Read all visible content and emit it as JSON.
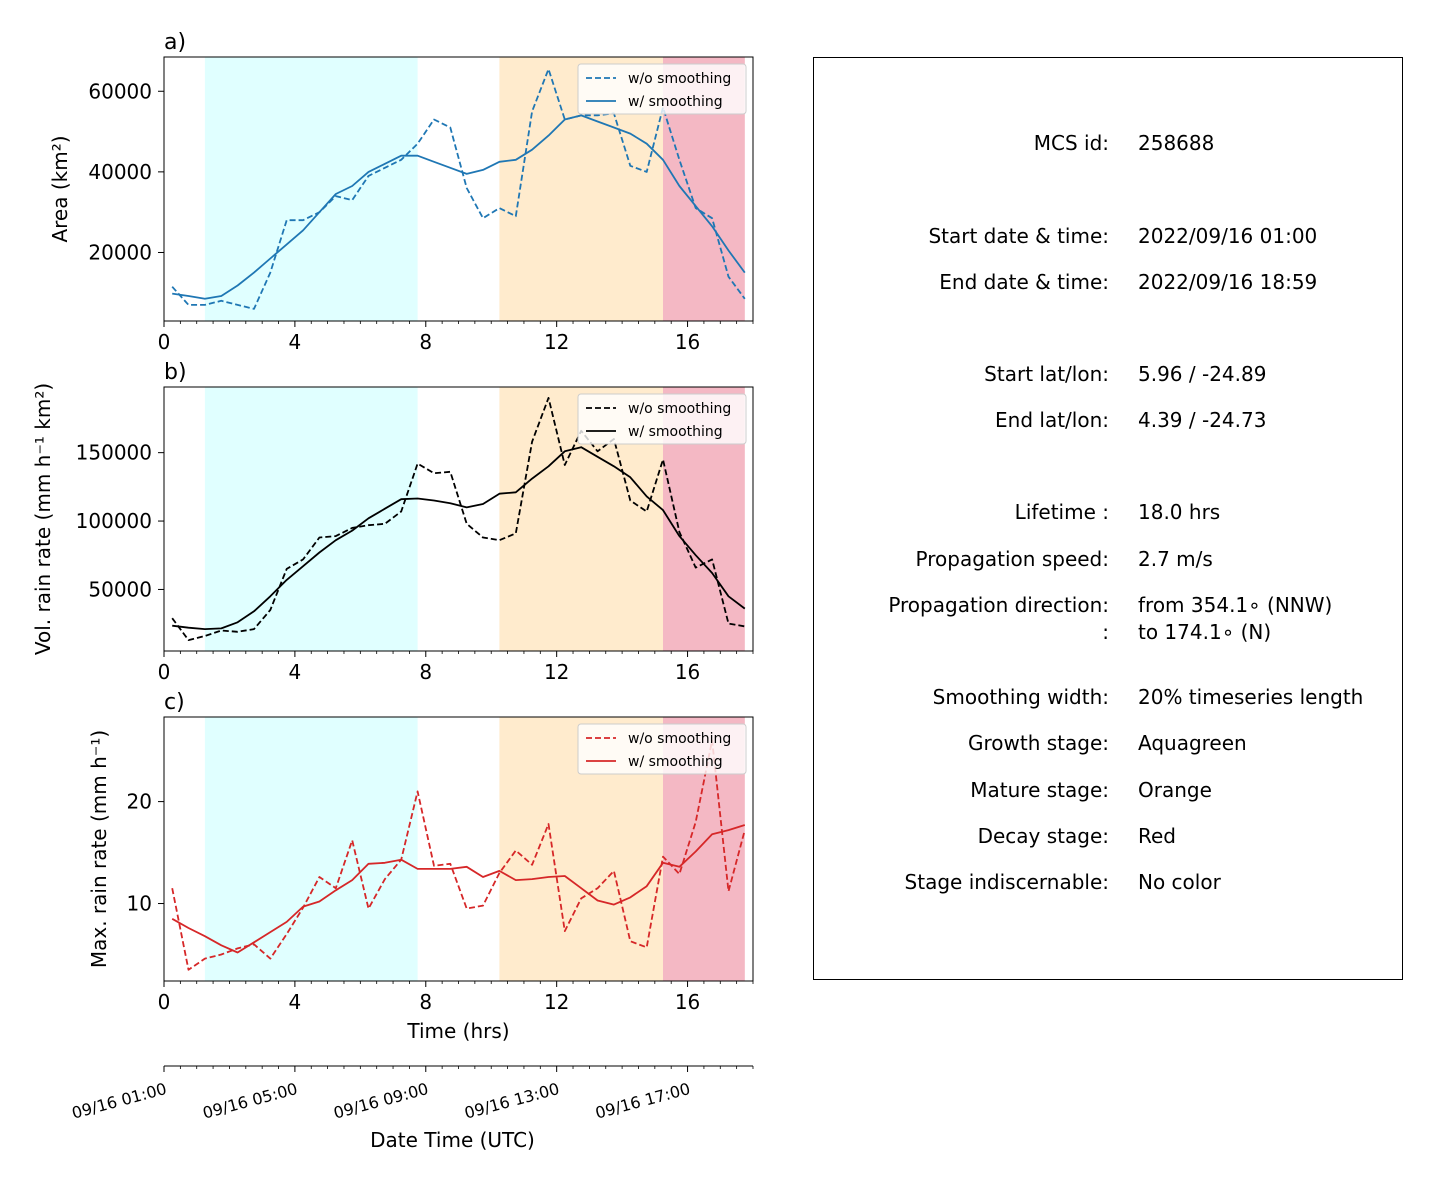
{
  "chart_data": [
    {
      "panel_label": "a)",
      "type": "line",
      "ylabel": "Area  (km²)",
      "xlabel": "",
      "xlim": [
        0,
        18
      ],
      "ylim": [
        3000,
        68500
      ],
      "yticks": [
        20000,
        40000,
        60000
      ],
      "xticks": [
        0,
        4,
        8,
        12,
        16
      ],
      "color": "#1f77b4",
      "legend_position": "upper right",
      "stages": [
        {
          "start": 1.25,
          "end": 7.75,
          "color": "#e0ffff"
        },
        {
          "start": 10.25,
          "end": 15.25,
          "color": "#ffebcd"
        },
        {
          "start": 15.25,
          "end": 17.75,
          "color": "#f4b8c4"
        }
      ],
      "series": [
        {
          "name": "w/o smoothing",
          "style": "dashed",
          "x": [
            0.25,
            0.75,
            1.25,
            1.75,
            2.25,
            2.75,
            3.25,
            3.75,
            4.25,
            4.75,
            5.25,
            5.75,
            6.25,
            6.75,
            7.25,
            7.75,
            8.25,
            8.75,
            9.25,
            9.75,
            10.25,
            10.75,
            11.25,
            11.75,
            12.25,
            12.75,
            13.25,
            13.75,
            14.25,
            14.75,
            15.25,
            15.75,
            16.25,
            16.75,
            17.25,
            17.75
          ],
          "y": [
            11500,
            7000,
            7000,
            8000,
            7000,
            6000,
            15000,
            28000,
            28000,
            30000,
            34000,
            33000,
            39000,
            41000,
            43000,
            47000,
            53000,
            51000,
            36000,
            28500,
            31000,
            29000,
            55000,
            65500,
            53000,
            54000,
            54000,
            54500,
            41500,
            40000,
            56000,
            43000,
            31000,
            28500,
            14000,
            8500
          ]
        },
        {
          "name": "w/ smoothing",
          "style": "solid",
          "x": [
            0.25,
            0.75,
            1.25,
            1.75,
            2.25,
            2.75,
            3.25,
            3.75,
            4.25,
            4.75,
            5.25,
            5.75,
            6.25,
            6.75,
            7.25,
            7.75,
            8.25,
            8.75,
            9.25,
            9.75,
            10.25,
            10.75,
            11.25,
            11.75,
            12.25,
            12.75,
            13.25,
            13.75,
            14.25,
            14.75,
            15.25,
            15.75,
            16.25,
            16.75,
            17.25,
            17.75
          ],
          "y": [
            9800,
            9200,
            8500,
            9200,
            11800,
            15000,
            18500,
            22000,
            25500,
            30000,
            34500,
            36500,
            40000,
            42000,
            44000,
            44000,
            42500,
            41000,
            39500,
            40500,
            42500,
            43000,
            45500,
            49000,
            53000,
            54000,
            52500,
            51000,
            49500,
            47000,
            43000,
            36500,
            31500,
            26500,
            20500,
            15000
          ]
        }
      ]
    },
    {
      "panel_label": "b)",
      "type": "line",
      "ylabel": "Vol. rain rate (mm h⁻¹ km²)",
      "xlabel": "",
      "xlim": [
        0,
        18
      ],
      "ylim": [
        5000,
        198000
      ],
      "yticks": [
        50000,
        100000,
        150000
      ],
      "xticks": [
        0,
        4,
        8,
        12,
        16
      ],
      "color": "#000000",
      "legend_position": "upper right",
      "stages": [
        {
          "start": 1.25,
          "end": 7.75,
          "color": "#e0ffff"
        },
        {
          "start": 10.25,
          "end": 15.25,
          "color": "#ffebcd"
        },
        {
          "start": 15.25,
          "end": 17.75,
          "color": "#f4b8c4"
        }
      ],
      "series": [
        {
          "name": "w/o smoothing",
          "style": "dashed",
          "x": [
            0.25,
            0.75,
            1.25,
            1.75,
            2.25,
            2.75,
            3.25,
            3.75,
            4.25,
            4.75,
            5.25,
            5.75,
            6.25,
            6.75,
            7.25,
            7.75,
            8.25,
            8.75,
            9.25,
            9.75,
            10.25,
            10.75,
            11.25,
            11.75,
            12.25,
            12.75,
            13.25,
            13.75,
            14.25,
            14.75,
            15.25,
            15.75,
            16.25,
            16.75,
            17.25,
            17.75
          ],
          "y": [
            29000,
            13000,
            16000,
            20000,
            19000,
            21000,
            35000,
            65000,
            72000,
            88000,
            89000,
            95000,
            97000,
            98000,
            107000,
            142000,
            135000,
            136000,
            98000,
            88000,
            86000,
            91000,
            158000,
            190000,
            141000,
            166000,
            151000,
            160000,
            115000,
            107000,
            145000,
            92000,
            66000,
            72000,
            25000,
            23000
          ]
        },
        {
          "name": "w/ smoothing",
          "style": "solid",
          "x": [
            0.25,
            0.75,
            1.25,
            1.75,
            2.25,
            2.75,
            3.25,
            3.75,
            4.25,
            4.75,
            5.25,
            5.75,
            6.25,
            6.75,
            7.25,
            7.75,
            8.25,
            8.75,
            9.25,
            9.75,
            10.25,
            10.75,
            11.25,
            11.75,
            12.25,
            12.75,
            13.25,
            13.75,
            14.25,
            14.75,
            15.25,
            15.75,
            16.25,
            16.75,
            17.25,
            17.75
          ],
          "y": [
            23500,
            22000,
            21000,
            21500,
            26000,
            34000,
            45000,
            57000,
            67000,
            77000,
            86000,
            93000,
            102000,
            109000,
            116000,
            116500,
            115000,
            113000,
            110000,
            112500,
            120000,
            121000,
            131000,
            140000,
            151000,
            154000,
            147000,
            140000,
            132000,
            118000,
            108000,
            89000,
            75000,
            62000,
            45000,
            36000
          ]
        }
      ]
    },
    {
      "panel_label": "c)",
      "type": "line",
      "ylabel": "Max. rain rate  (mm h⁻¹)",
      "xlabel": "Time (hrs)",
      "xlim": [
        0,
        18
      ],
      "ylim": [
        2.4,
        28.3
      ],
      "yticks": [
        10,
        20
      ],
      "xticks": [
        0,
        4,
        8,
        12,
        16
      ],
      "color": "#d62728",
      "legend_position": "upper right",
      "stages": [
        {
          "start": 1.25,
          "end": 7.75,
          "color": "#e0ffff"
        },
        {
          "start": 10.25,
          "end": 15.25,
          "color": "#ffebcd"
        },
        {
          "start": 15.25,
          "end": 17.75,
          "color": "#f4b8c4"
        }
      ],
      "series": [
        {
          "name": "w/o smoothing",
          "style": "dashed",
          "x": [
            0.25,
            0.75,
            1.25,
            1.75,
            2.25,
            2.75,
            3.25,
            3.75,
            4.25,
            4.75,
            5.25,
            5.75,
            6.25,
            6.75,
            7.25,
            7.75,
            8.25,
            8.75,
            9.25,
            9.75,
            10.25,
            10.75,
            11.25,
            11.75,
            12.25,
            12.75,
            13.25,
            13.75,
            14.25,
            14.75,
            15.25,
            15.75,
            16.25,
            16.75,
            17.25,
            17.75
          ],
          "y": [
            11.5,
            3.5,
            4.6,
            5.0,
            5.6,
            6.0,
            4.6,
            7.0,
            9.6,
            12.6,
            11.5,
            16.2,
            9.5,
            12.4,
            14.3,
            21.0,
            13.7,
            13.9,
            9.5,
            9.8,
            13.0,
            15.2,
            13.8,
            17.8,
            7.3,
            10.5,
            11.5,
            13.2,
            6.3,
            5.7,
            14.6,
            12.9,
            18.0,
            26.0,
            11.2,
            17.2
          ]
        },
        {
          "name": "w/ smoothing",
          "style": "solid",
          "x": [
            0.25,
            0.75,
            1.25,
            1.75,
            2.25,
            2.75,
            3.25,
            3.75,
            4.25,
            4.75,
            5.25,
            5.75,
            6.25,
            6.75,
            7.25,
            7.75,
            8.25,
            8.75,
            9.25,
            9.75,
            10.25,
            10.75,
            11.25,
            11.75,
            12.25,
            12.75,
            13.25,
            13.75,
            14.25,
            14.75,
            15.25,
            15.75,
            16.25,
            16.75,
            17.25,
            17.75
          ],
          "y": [
            8.5,
            7.6,
            6.8,
            5.9,
            5.2,
            6.2,
            7.2,
            8.2,
            9.7,
            10.2,
            11.3,
            12.3,
            13.9,
            14.0,
            14.3,
            13.4,
            13.4,
            13.4,
            13.6,
            12.6,
            13.2,
            12.3,
            12.4,
            12.6,
            12.7,
            11.5,
            10.3,
            9.9,
            10.6,
            11.7,
            14.0,
            13.6,
            15.1,
            16.8,
            17.2,
            17.7
          ]
        }
      ]
    }
  ],
  "datetime_axis": {
    "label": "Date Time (UTC)",
    "ticks": [
      {
        "hrs": 0,
        "label": "09/16 01:00"
      },
      {
        "hrs": 4,
        "label": "09/16 05:00"
      },
      {
        "hrs": 8,
        "label": "09/16 09:00"
      },
      {
        "hrs": 12,
        "label": "09/16 13:00"
      },
      {
        "hrs": 16,
        "label": "09/16 17:00"
      }
    ]
  },
  "info": {
    "mcs_id_label": "MCS id:",
    "mcs_id": "258688",
    "start_time_label": "Start date & time:",
    "start_time": "2022/09/16 01:00",
    "end_time_label": "End date & time:",
    "end_time": "2022/09/16 18:59",
    "start_latlon_label": "Start lat/lon:",
    "start_latlon": "5.96 / -24.89",
    "end_latlon_label": "End lat/lon:",
    "end_latlon": "4.39 / -24.73",
    "lifetime_label": "Lifetime :",
    "lifetime": "18.0 hrs",
    "speed_label": "Propagation speed:",
    "speed": "2.7 m/s",
    "direction_label": "Propagation direction:",
    "direction_from": "from 354.1∘ (NNW)",
    "direction_colon": ":",
    "direction_to": "to   174.1∘ (N)",
    "smoothing_label": "Smoothing width:",
    "smoothing": "20% timeseries length",
    "growth_label": "Growth stage:",
    "growth": "Aquagreen",
    "mature_label": "Mature stage:",
    "mature": "Orange",
    "decay_label": "Decay stage:",
    "decay": "Red",
    "indiscernable_label": "Stage indiscernable:",
    "indiscernable": "No color"
  }
}
